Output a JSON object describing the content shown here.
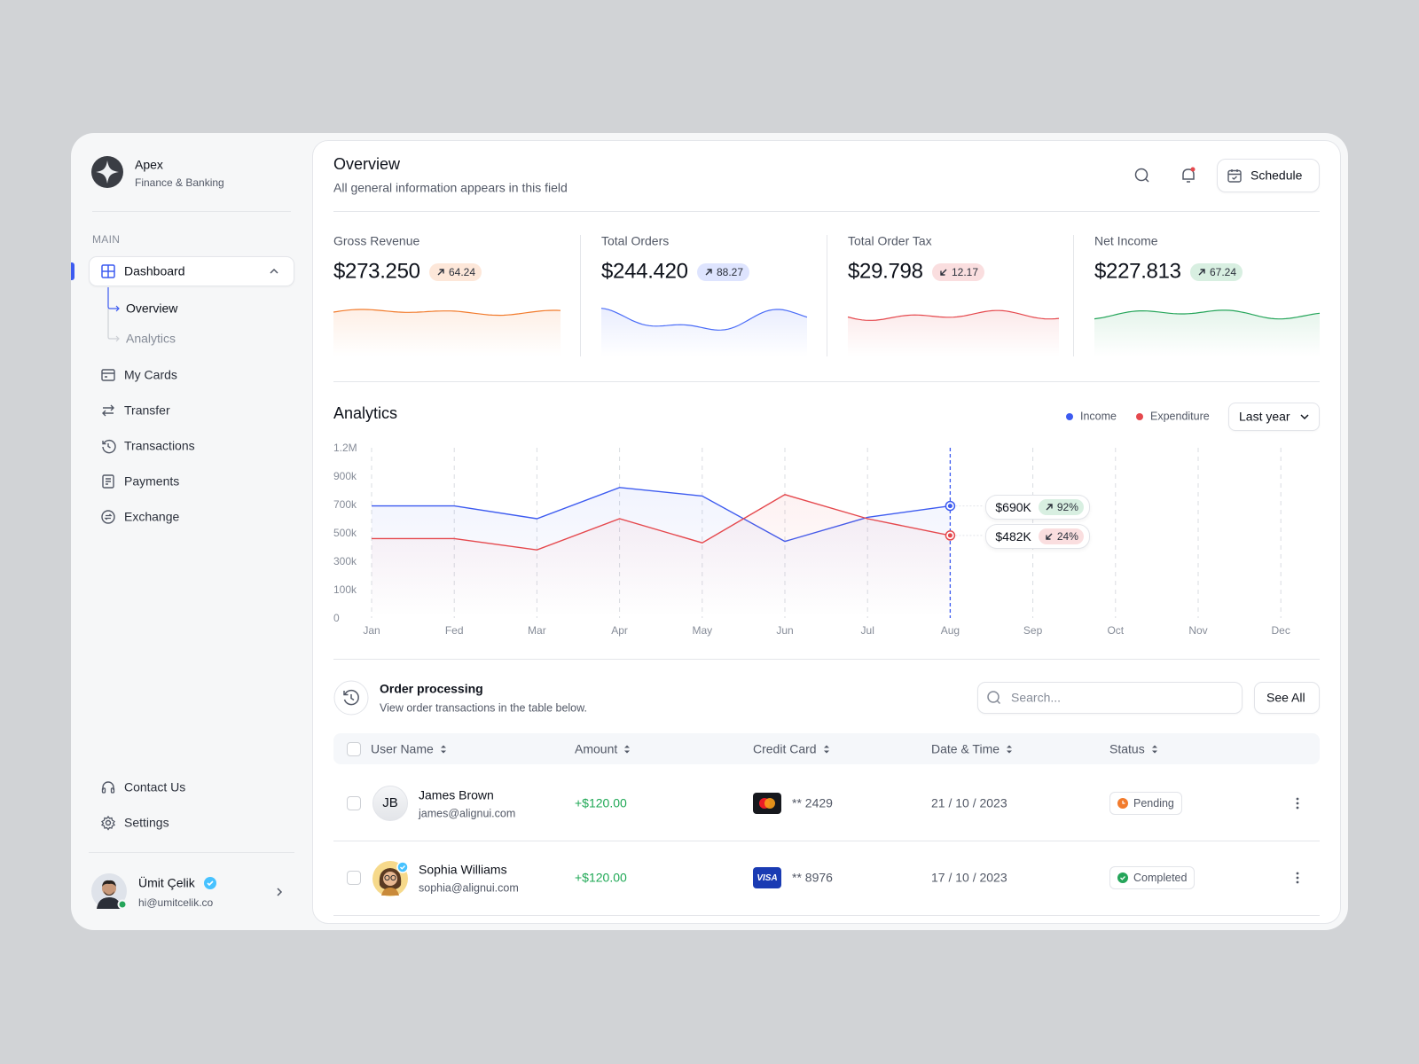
{
  "sidebar": {
    "brand": {
      "name": "Apex",
      "tagline": "Finance & Banking"
    },
    "section_label": "MAIN",
    "nav": [
      "Dashboard",
      "My Cards",
      "Transfer",
      "Transactions",
      "Payments",
      "Exchange"
    ],
    "dashboard_sub": [
      "Overview",
      "Analytics"
    ],
    "footer_nav": [
      "Contact Us",
      "Settings"
    ],
    "user": {
      "name": "Ümit Çelik",
      "email": "hi@umitcelik.co"
    }
  },
  "header": {
    "title": "Overview",
    "subtitle": "All general information appears in this field",
    "button": "Schedule"
  },
  "kpis": [
    {
      "label": "Gross Revenue",
      "value": "$273.250",
      "change": "64.24",
      "direction": "up",
      "color": "#f27b2c"
    },
    {
      "label": "Total Orders",
      "value": "$244.420",
      "change": "88.27",
      "direction": "up",
      "color": "#4a6cf7"
    },
    {
      "label": "Total Order Tax",
      "value": "$29.798",
      "change": "12.17",
      "direction": "down",
      "color": "#e5484d"
    },
    {
      "label": "Net Income",
      "value": "$227.813",
      "change": "67.24",
      "direction": "up",
      "color": "#25a55a"
    }
  ],
  "analytics": {
    "title": "Analytics",
    "filter": "Last year",
    "chart_data": {
      "type": "line",
      "categories": [
        "Jan",
        "Fed",
        "Mar",
        "Apr",
        "May",
        "Jun",
        "Jul",
        "Aug",
        "Sep",
        "Oct",
        "Nov",
        "Dec"
      ],
      "series": [
        {
          "name": "Income",
          "color": "#3d5bf0",
          "values": [
            690000,
            690000,
            600000,
            820000,
            760000,
            440000,
            610000,
            690000,
            null,
            null,
            null,
            null
          ],
          "callout": {
            "label": "$690K",
            "change": "92%",
            "direction": "up",
            "color": "#25a55a"
          }
        },
        {
          "name": "Expenditure",
          "color": "#e5484d",
          "values": [
            460000,
            460000,
            380000,
            600000,
            430000,
            770000,
            600000,
            482000,
            null,
            null,
            null,
            null
          ],
          "callout": {
            "label": "$482K",
            "change": "24%",
            "direction": "down",
            "color": "#e5484d"
          }
        }
      ],
      "ylim": [
        0,
        1200000
      ],
      "yticks": [
        0,
        {
          "value": 100000,
          "label": "100k"
        },
        {
          "value": 300000,
          "label": "300k"
        },
        {
          "value": 500000,
          "label": "500k"
        },
        {
          "value": 700000,
          "label": "700k"
        },
        {
          "value": 900000,
          "label": "900k"
        },
        {
          "value": 1200000,
          "label": "1.2M"
        }
      ],
      "area": true
    }
  },
  "orders": {
    "title": "Order processing",
    "subtitle": "View order transactions in the table below.",
    "search_placeholder": "Search...",
    "button": "See All",
    "columns": [
      "User Name",
      "Amount",
      "Credit Card",
      "Date & Time",
      "Status"
    ],
    "rows": [
      {
        "initials": "JB",
        "name": "James Brown",
        "email": "james@alignui.com",
        "amount": "+$120.00",
        "card": "** 2429",
        "date": "21 / 10 / 2023",
        "status": "Pending",
        "status_color": "#f27b2c"
      },
      {
        "name": "Sophia Williams",
        "email": "sophia@alignui.com",
        "amount": "+$120.00",
        "card_logo": "VISA",
        "card": "** 8976",
        "date": "17 / 10 / 2023",
        "status": "Completed",
        "status_color": "#25a55a"
      }
    ]
  }
}
